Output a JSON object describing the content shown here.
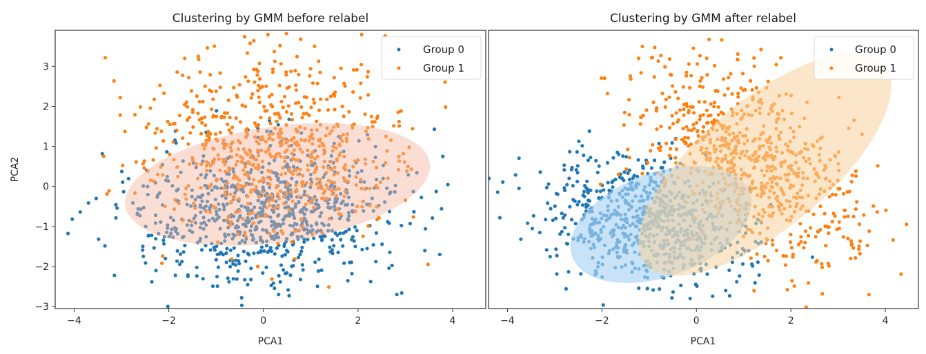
{
  "chart_data": [
    {
      "type": "scatter",
      "title": "Clustering by GMM before relabel",
      "xlabel": "PCA1",
      "ylabel": "PCA2",
      "xlim": [
        -4.4,
        4.7
      ],
      "ylim": [
        -3.05,
        3.9
      ],
      "xticks": [
        -4,
        -2,
        0,
        2,
        4
      ],
      "xtick_labels": [
        "−4",
        "−2",
        "0",
        "2",
        "4"
      ],
      "yticks": [
        -3,
        -2,
        -1,
        0,
        1,
        2,
        3
      ],
      "ytick_labels": [
        "−3",
        "−2",
        "−1",
        "0",
        "1",
        "2",
        "3"
      ],
      "legend": {
        "position": "upper right",
        "entries": [
          "Group 0",
          "Group 1"
        ]
      },
      "series": [
        {
          "name": "Group 0",
          "color": "#1f77b4",
          "count": 800,
          "mean": [
            0.0,
            -0.7
          ],
          "sd": [
            1.35,
            0.85
          ],
          "corr": 0.05,
          "seed": 11
        },
        {
          "name": "Group 1",
          "color": "#ff7f0e",
          "count": 700,
          "mean": [
            0.3,
            0.9
          ],
          "sd": [
            1.3,
            1.05
          ],
          "corr": -0.05,
          "seed": 23
        }
      ],
      "ellipses": [
        {
          "center": [
            0.3,
            0.05
          ],
          "rx": 3.25,
          "ry": 1.45,
          "angle_deg": -8,
          "color": "#f4b6a0",
          "alpha": 0.45
        }
      ]
    },
    {
      "type": "scatter",
      "title": "Clustering by GMM after relabel",
      "xlabel": "PCA1",
      "ylabel": "",
      "xlim": [
        -4.4,
        4.7
      ],
      "ylim": [
        -3.05,
        3.9
      ],
      "xticks": [
        -4,
        -2,
        0,
        2,
        4
      ],
      "xtick_labels": [
        "−4",
        "−2",
        "0",
        "2",
        "4"
      ],
      "legend": {
        "position": "upper right",
        "entries": [
          "Group 0",
          "Group 1"
        ]
      },
      "series": [
        {
          "name": "Group 0",
          "color": "#1f77b4",
          "count": 750,
          "mean": [
            -1.0,
            -0.85
          ],
          "sd": [
            1.05,
            0.8
          ],
          "corr": -0.2,
          "seed": 37
        },
        {
          "name": "Group 1",
          "color": "#ff7f0e",
          "count": 750,
          "mean": [
            1.15,
            0.7
          ],
          "sd": [
            1.2,
            1.25
          ],
          "corr": -0.55,
          "seed": 53
        }
      ],
      "ellipses": [
        {
          "center": [
            -0.75,
            -0.95
          ],
          "rx": 2.0,
          "ry": 1.3,
          "angle_deg": -20,
          "color": "#aad4f5",
          "alpha": 0.65
        },
        {
          "center": [
            1.45,
            0.55
          ],
          "rx": 3.3,
          "ry": 1.6,
          "angle_deg": -40,
          "color": "#f8d29d",
          "alpha": 0.55
        }
      ]
    }
  ]
}
